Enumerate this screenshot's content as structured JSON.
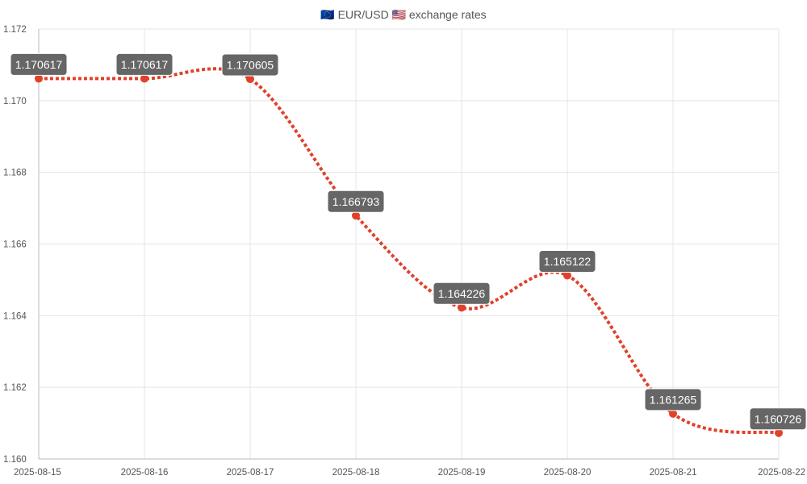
{
  "chart_data": {
    "type": "line",
    "title": "🇪🇺 EUR/USD 🇺🇸 exchange rates",
    "xlabel": "",
    "ylabel": "",
    "x": [
      "2025-08-15",
      "2025-08-16",
      "2025-08-17",
      "2025-08-18",
      "2025-08-19",
      "2025-08-20",
      "2025-08-21",
      "2025-08-22"
    ],
    "series": [
      {
        "values": [
          1.170617,
          1.170617,
          1.170605,
          1.166793,
          1.164226,
          1.165122,
          1.161265,
          1.160726
        ],
        "labels": [
          "1.170617",
          "1.170617",
          "1.170605",
          "1.166793",
          "1.164226",
          "1.165122",
          "1.161265",
          "1.160726"
        ],
        "color": "#e0412b"
      }
    ],
    "ylim": [
      1.16,
      1.172
    ],
    "yticks": [
      "1.160",
      "1.162",
      "1.164",
      "1.166",
      "1.168",
      "1.170",
      "1.172"
    ],
    "grid": true,
    "legend": "none",
    "label_bg_color": "#666666"
  }
}
